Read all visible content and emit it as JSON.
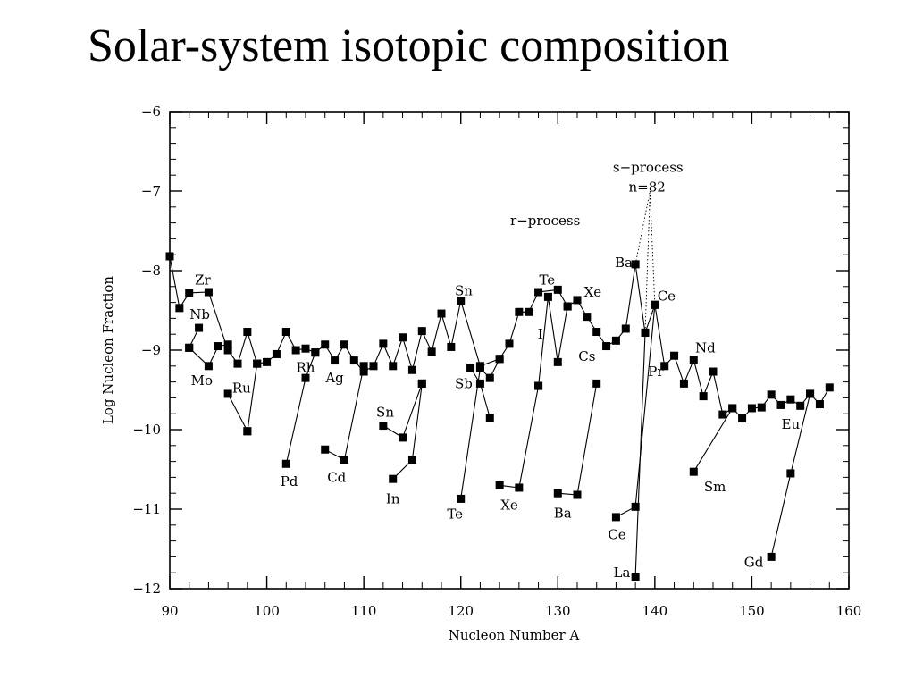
{
  "slide": {
    "title": "Solar-system isotopic composition"
  },
  "chart_data": {
    "type": "line",
    "title": "",
    "xlabel": "Nucleon Number A",
    "ylabel": "Log Nucleon Fraction",
    "xlim": [
      90,
      160
    ],
    "ylim": [
      -12,
      -6
    ],
    "xticks": [
      90,
      100,
      110,
      120,
      130,
      140,
      150,
      160
    ],
    "yticks": [
      -6,
      -7,
      -8,
      -9,
      -10,
      -11,
      -12
    ],
    "grid": false,
    "series": [
      {
        "x": [
          90,
          91,
          92,
          94,
          96,
          97,
          98,
          99,
          100,
          101,
          102,
          103,
          104,
          105,
          106,
          107,
          108,
          109,
          110,
          111,
          112,
          113,
          114,
          115,
          116,
          117,
          118,
          119,
          120,
          122,
          124,
          125,
          126,
          127,
          128,
          130,
          131,
          132,
          133,
          134,
          135,
          136,
          137,
          138,
          139,
          140,
          141,
          142,
          143,
          144,
          145,
          146,
          147,
          148,
          149,
          150,
          151,
          152,
          153,
          154,
          155,
          156,
          157,
          158
        ],
        "y": [
          -7.82,
          -8.47,
          -8.28,
          -8.27,
          -9.0,
          -9.17,
          -8.77,
          -9.17,
          -9.15,
          -9.05,
          -8.77,
          -9.0,
          -8.98,
          -9.03,
          -8.93,
          -9.13,
          -8.93,
          -9.13,
          -9.27,
          -9.2,
          -8.92,
          -9.2,
          -8.84,
          -9.25,
          -8.76,
          -9.02,
          -8.54,
          -8.96,
          -8.38,
          -9.2,
          -9.11,
          -8.92,
          -8.52,
          -8.52,
          -8.27,
          -8.24,
          -8.45,
          -8.37,
          -8.58,
          -8.77,
          -8.95,
          -8.88,
          -8.73,
          -7.92,
          -8.78,
          -8.43,
          -9.2,
          -9.07,
          -9.42,
          -9.12,
          -9.58,
          -9.27,
          -9.81,
          -9.73,
          -9.86,
          -9.73,
          -9.72,
          -9.56,
          -9.69,
          -9.62,
          -9.7,
          -9.55,
          -9.68,
          -9.47
        ]
      },
      {
        "x": [
          92,
          93
        ],
        "y": [
          -8.97,
          -8.72
        ]
      },
      {
        "x": [
          92,
          94,
          95,
          96
        ],
        "y": [
          -8.97,
          -9.2,
          -8.95,
          -8.93
        ]
      },
      {
        "x": [
          96,
          98
        ],
        "y": [
          -9.55,
          -10.02
        ]
      },
      {
        "x": [
          98,
          99
        ],
        "y": [
          -10.02,
          -9.17
        ]
      },
      {
        "x": [
          102,
          104,
          105
        ],
        "y": [
          -10.43,
          -9.35,
          -9.03
        ]
      },
      {
        "x": [
          106,
          108,
          110
        ],
        "y": [
          -10.25,
          -10.38,
          -9.2
        ]
      },
      {
        "x": [
          112,
          114,
          116
        ],
        "y": [
          -9.95,
          -10.1,
          -9.42
        ]
      },
      {
        "x": [
          113,
          115,
          116
        ],
        "y": [
          -10.62,
          -10.38,
          -9.42
        ]
      },
      {
        "x": [
          120,
          122,
          123,
          124
        ],
        "y": [
          -10.87,
          -9.23,
          -9.35,
          -9.11
        ]
      },
      {
        "x": [
          121,
          122,
          123
        ],
        "y": [
          -9.22,
          -9.42,
          -9.85
        ]
      },
      {
        "x": [
          124,
          126,
          128
        ],
        "y": [
          -10.7,
          -10.73,
          -9.45
        ]
      },
      {
        "x": [
          128,
          129,
          130,
          131
        ],
        "y": [
          -9.45,
          -8.33,
          -9.15,
          -8.45
        ]
      },
      {
        "x": [
          130,
          132,
          134
        ],
        "y": [
          -10.8,
          -10.82,
          -9.42
        ]
      },
      {
        "x": [
          136,
          138,
          140
        ],
        "y": [
          -11.1,
          -10.97,
          -8.43
        ]
      },
      {
        "x": [
          138,
          139
        ],
        "y": [
          -11.85,
          -8.78
        ]
      },
      {
        "x": [
          144,
          148
        ],
        "y": [
          -10.53,
          -9.73
        ]
      },
      {
        "x": [
          152,
          154,
          156
        ],
        "y": [
          -11.6,
          -10.55,
          -9.55
        ]
      }
    ],
    "annotations": [
      {
        "text": "Zr",
        "x": 93.4,
        "y": -8.12
      },
      {
        "text": "Nb",
        "x": 93.1,
        "y": -8.55
      },
      {
        "text": "Mo",
        "x": 93.3,
        "y": -9.38
      },
      {
        "text": "Ru",
        "x": 97.4,
        "y": -9.48
      },
      {
        "text": "Rh",
        "x": 104.0,
        "y": -9.22
      },
      {
        "text": "Ag",
        "x": 107.0,
        "y": -9.35
      },
      {
        "text": "Pd",
        "x": 102.3,
        "y": -10.65
      },
      {
        "text": "Cd",
        "x": 107.2,
        "y": -10.6
      },
      {
        "text": "Sn",
        "x": 112.2,
        "y": -9.78
      },
      {
        "text": "In",
        "x": 113.0,
        "y": -10.87
      },
      {
        "text": "Sn",
        "x": 120.3,
        "y": -8.25
      },
      {
        "text": "Sb",
        "x": 120.3,
        "y": -9.42
      },
      {
        "text": "Te",
        "x": 119.4,
        "y": -11.06
      },
      {
        "text": "Xe",
        "x": 125.0,
        "y": -10.95
      },
      {
        "text": "Te",
        "x": 128.9,
        "y": -8.12
      },
      {
        "text": "I",
        "x": 128.2,
        "y": -8.8
      },
      {
        "text": "Xe",
        "x": 133.6,
        "y": -8.27
      },
      {
        "text": "Cs",
        "x": 133.0,
        "y": -9.08
      },
      {
        "text": "Ba",
        "x": 130.5,
        "y": -11.05
      },
      {
        "text": "s−process",
        "x": 139.3,
        "y": -6.7
      },
      {
        "text": "n=82",
        "x": 139.2,
        "y": -6.95
      },
      {
        "text": "r−process",
        "x": 128.7,
        "y": -7.37
      },
      {
        "text": "Ba",
        "x": 136.8,
        "y": -7.9
      },
      {
        "text": "Ce",
        "x": 141.2,
        "y": -8.32
      },
      {
        "text": "Pr",
        "x": 140.1,
        "y": -9.27
      },
      {
        "text": "Nd",
        "x": 145.2,
        "y": -8.97
      },
      {
        "text": "Sm",
        "x": 146.2,
        "y": -10.72
      },
      {
        "text": "Ce",
        "x": 136.1,
        "y": -11.32
      },
      {
        "text": "La",
        "x": 136.6,
        "y": -11.8
      },
      {
        "text": "Eu",
        "x": 154.0,
        "y": -9.93
      },
      {
        "text": "Gd",
        "x": 150.2,
        "y": -11.67
      }
    ],
    "guide_lines": [
      {
        "from": [
          138,
          -7.92
        ],
        "to": [
          139.5,
          -7.0
        ]
      },
      {
        "from": [
          139.5,
          -7.0
        ],
        "to": [
          140,
          -8.43
        ]
      },
      {
        "from": [
          139.5,
          -7.0
        ],
        "to": [
          139,
          -8.78
        ]
      }
    ]
  }
}
